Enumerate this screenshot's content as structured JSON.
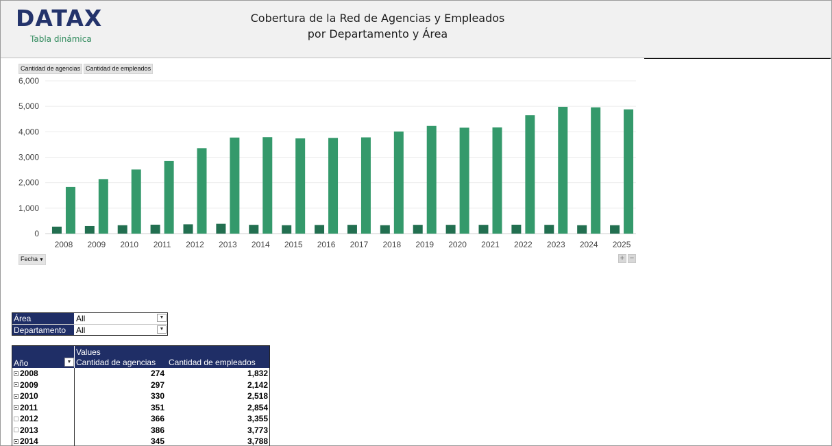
{
  "header": {
    "logo": "DATAX",
    "subtitle": "Tabla dinámica",
    "title_line1": "Cobertura de la Red de Agencias y Empleados",
    "title_line2": "por Departamento y Área"
  },
  "chart_fields": {
    "agencias": "Cantidad de agencias",
    "empleados": "Cantidad de empleados",
    "fecha": "Fecha",
    "zoom_in": "+",
    "zoom_out": "−"
  },
  "chart_data": {
    "type": "bar",
    "categories": [
      "2008",
      "2009",
      "2010",
      "2011",
      "2012",
      "2013",
      "2014",
      "2015",
      "2016",
      "2017",
      "2018",
      "2019",
      "2020",
      "2021",
      "2022",
      "2023",
      "2024",
      "2025"
    ],
    "series": [
      {
        "name": "Cantidad de agencias",
        "color": "#226f50",
        "values": [
          274,
          297,
          330,
          351,
          366,
          386,
          345,
          330,
          340,
          345,
          330,
          345,
          345,
          345,
          350,
          345,
          330,
          330
        ]
      },
      {
        "name": "Cantidad de empleados",
        "color": "#34996b",
        "values": [
          1832,
          2142,
          2518,
          2854,
          3355,
          3773,
          3788,
          3740,
          3760,
          3780,
          4010,
          4230,
          4160,
          4170,
          4650,
          4980,
          4960,
          4880
        ]
      }
    ],
    "yticks": [
      "0",
      "1,000",
      "2,000",
      "3,000",
      "4,000",
      "5,000",
      "6,000"
    ],
    "ylim": [
      0,
      6000
    ],
    "grid": true
  },
  "filters": {
    "area_label": "Área",
    "area_value": "All",
    "dept_label": "Departamento",
    "dept_value": "All"
  },
  "pivot": {
    "values_label": "Values",
    "year_label": "Año",
    "col1": "Cantidad de agencias",
    "col2": "Cantidad de empleados",
    "rows": [
      {
        "year": "2008",
        "agencias": "274",
        "empleados": "1,832"
      },
      {
        "year": "2009",
        "agencias": "297",
        "empleados": "2,142"
      },
      {
        "year": "2010",
        "agencias": "330",
        "empleados": "2,518"
      },
      {
        "year": "2011",
        "agencias": "351",
        "empleados": "2,854"
      },
      {
        "year": "2012",
        "agencias": "366",
        "empleados": "3,355"
      },
      {
        "year": "2013",
        "agencias": "386",
        "empleados": "3,773"
      },
      {
        "year": "2014",
        "agencias": "345",
        "empleados": "3,788"
      }
    ]
  }
}
